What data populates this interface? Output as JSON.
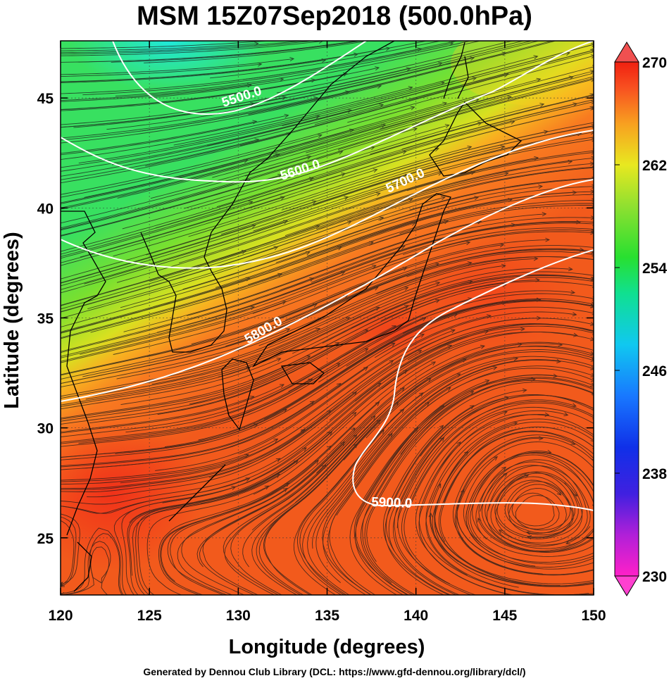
{
  "title": "MSM 15Z07Sep2018 (500.0hPa)",
  "footer": "Generated by Dennou Club Library (DCL: https://www.gfd-dennou.org/library/dcl/)",
  "chart_data": {
    "type": "heatmap",
    "xlabel": "Longitude (degrees)",
    "ylabel": "Latitude  (degrees)",
    "xlim": [
      120,
      150
    ],
    "ylim": [
      22.4,
      47.6
    ],
    "x_ticks": [
      "120",
      "125",
      "130",
      "135",
      "140",
      "145",
      "150"
    ],
    "y_ticks": [
      "25",
      "30",
      "35",
      "40",
      "45"
    ],
    "colorbar": {
      "min": 230,
      "max": 270,
      "ticks": [
        "270",
        "262",
        "254",
        "246",
        "238",
        "230"
      ],
      "extend": "both"
    },
    "contours": [
      {
        "label": "5500.0",
        "value": 5500
      },
      {
        "label": "5600.0",
        "value": 5600
      },
      {
        "label": "5700.0",
        "value": 5700
      },
      {
        "label": "5800.0",
        "value": 5800
      },
      {
        "label": "5900.0",
        "value": 5900
      }
    ],
    "overlay": "streamlines",
    "grid": true
  }
}
